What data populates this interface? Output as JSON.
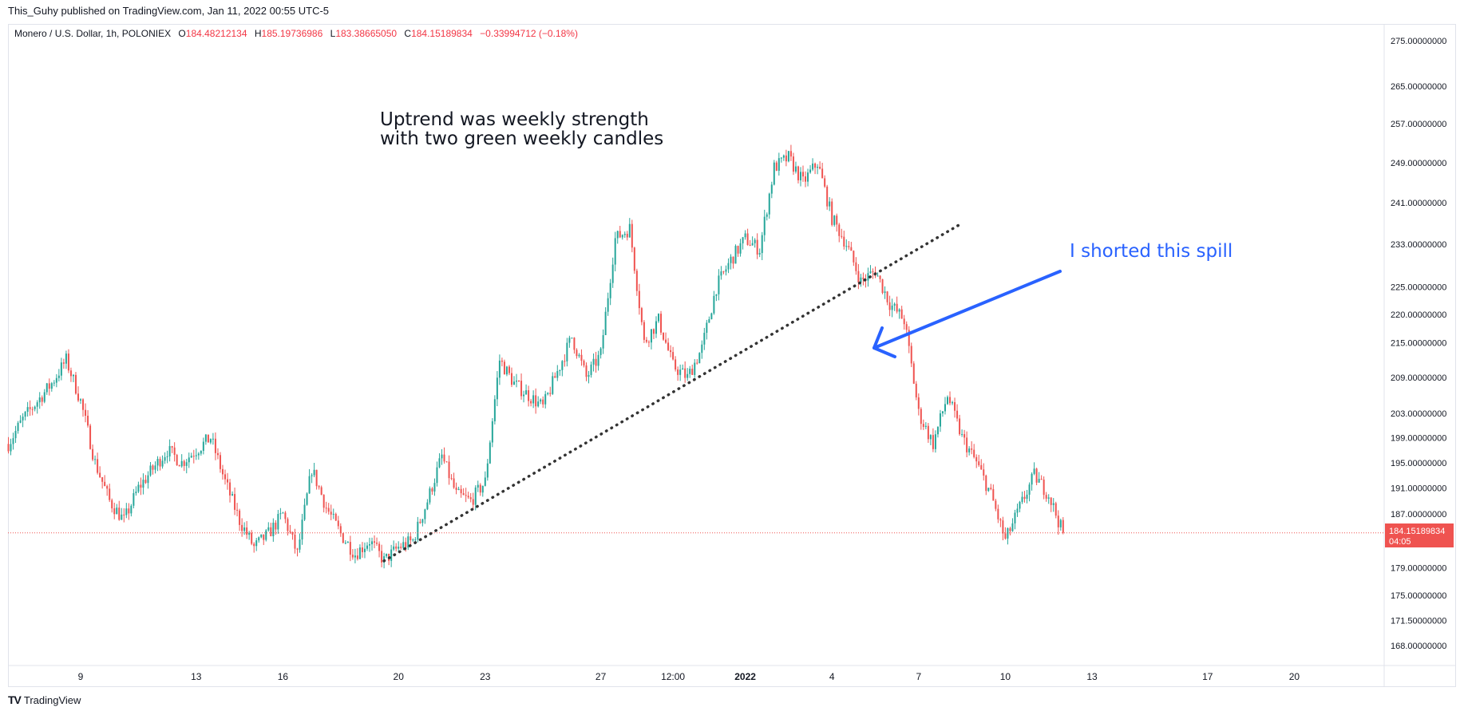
{
  "header": {
    "published": "This_Guhy published on TradingView.com, Jan 11, 2022 00:55 UTC-5"
  },
  "legend": {
    "symbol": "Monero / U.S. Dollar, 1h, POLONIEX",
    "open_label": "O",
    "open": "184.48212134",
    "high_label": "H",
    "high": "185.19736986",
    "low_label": "L",
    "low": "183.38665050",
    "close_label": "C",
    "close": "184.15189834",
    "change": "−0.33994712 (−0.18%)"
  },
  "footer": {
    "logo": "TV",
    "brand": "TradingView"
  },
  "colors": {
    "up": "#26a69a",
    "down": "#ef5350",
    "accent": "#2962ff",
    "price_badge": "#ef5350"
  },
  "chart_data": {
    "type": "candlestick",
    "title": "",
    "instrument": "Monero / U.S. Dollar",
    "interval": "1h",
    "exchange": "POLONIEX",
    "scale": "log",
    "price_ticks": [
      "275.00000000",
      "265.00000000",
      "257.00000000",
      "249.00000000",
      "241.00000000",
      "233.00000000",
      "225.00000000",
      "220.00000000",
      "215.00000000",
      "209.00000000",
      "203.00000000",
      "199.00000000",
      "195.00000000",
      "191.00000000",
      "187.00000000",
      "179.00000000",
      "175.00000000",
      "171.50000000",
      "168.00000000"
    ],
    "x_ticks": [
      {
        "label": "9",
        "date": "2021-12-09"
      },
      {
        "label": "13",
        "date": "2021-12-13"
      },
      {
        "label": "16",
        "date": "2021-12-16"
      },
      {
        "label": "20",
        "date": "2021-12-20"
      },
      {
        "label": "23",
        "date": "2021-12-23"
      },
      {
        "label": "27",
        "date": "2021-12-27"
      },
      {
        "label": "12:00",
        "date": "2021-12-29T12:00"
      },
      {
        "label": "2022",
        "date": "2022-01-01"
      },
      {
        "label": "4",
        "date": "2022-01-04"
      },
      {
        "label": "7",
        "date": "2022-01-07"
      },
      {
        "label": "10",
        "date": "2022-01-10"
      },
      {
        "label": "13",
        "date": "2022-01-13"
      },
      {
        "label": "17",
        "date": "2022-01-17"
      },
      {
        "label": "20",
        "date": "2022-01-20"
      }
    ],
    "price_path": [
      [
        "2021-12-06T12:00",
        198
      ],
      [
        "2021-12-07",
        202
      ],
      [
        "2021-12-07T12:00",
        205
      ],
      [
        "2021-12-08",
        208
      ],
      [
        "2021-12-08T12:00",
        212
      ],
      [
        "2021-12-09",
        205
      ],
      [
        "2021-12-09T12:00",
        195
      ],
      [
        "2021-12-10",
        189
      ],
      [
        "2021-12-10T12:00",
        186
      ],
      [
        "2021-12-11",
        191
      ],
      [
        "2021-12-11T12:00",
        194
      ],
      [
        "2021-12-12",
        197
      ],
      [
        "2021-12-12T12:00",
        195
      ],
      [
        "2021-12-13",
        197
      ],
      [
        "2021-12-13T12:00",
        199
      ],
      [
        "2021-12-14",
        192
      ],
      [
        "2021-12-14T12:00",
        186
      ],
      [
        "2021-12-15",
        182
      ],
      [
        "2021-12-15T12:00",
        184
      ],
      [
        "2021-12-16",
        187
      ],
      [
        "2021-12-16T12:00",
        181
      ],
      [
        "2021-12-17",
        194
      ],
      [
        "2021-12-17T12:00",
        188
      ],
      [
        "2021-12-18",
        184
      ],
      [
        "2021-12-18T12:00",
        181
      ],
      [
        "2021-12-19",
        183
      ],
      [
        "2021-12-19T12:00",
        180
      ],
      [
        "2021-12-20",
        182
      ],
      [
        "2021-12-20T12:00",
        183
      ],
      [
        "2021-12-21",
        189
      ],
      [
        "2021-12-21T12:00",
        196
      ],
      [
        "2021-12-22",
        190
      ],
      [
        "2021-12-22T12:00",
        189
      ],
      [
        "2021-12-23",
        192
      ],
      [
        "2021-12-23T12:00",
        212
      ],
      [
        "2021-12-24",
        208
      ],
      [
        "2021-12-24T12:00",
        206
      ],
      [
        "2021-12-25",
        204
      ],
      [
        "2021-12-25T12:00",
        210
      ],
      [
        "2021-12-26",
        216
      ],
      [
        "2021-12-26T12:00",
        209
      ],
      [
        "2021-12-27",
        213
      ],
      [
        "2021-12-27T12:00",
        234
      ],
      [
        "2021-12-28",
        236
      ],
      [
        "2021-12-28T12:00",
        215
      ],
      [
        "2021-12-29",
        219
      ],
      [
        "2021-12-29T12:00",
        211
      ],
      [
        "2021-12-30",
        209
      ],
      [
        "2021-12-30T12:00",
        214
      ],
      [
        "2021-12-31",
        225
      ],
      [
        "2021-12-31T12:00",
        230
      ],
      [
        "2022-01-01",
        234
      ],
      [
        "2022-01-01T12:00",
        232
      ],
      [
        "2022-01-02",
        248
      ],
      [
        "2022-01-02T12:00",
        250
      ],
      [
        "2022-01-03",
        245
      ],
      [
        "2022-01-03T12:00",
        249
      ],
      [
        "2022-01-04",
        238
      ],
      [
        "2022-01-04T12:00",
        233
      ],
      [
        "2022-01-05",
        226
      ],
      [
        "2022-01-05T12:00",
        228
      ],
      [
        "2022-01-06",
        222
      ],
      [
        "2022-01-06T12:00",
        219
      ],
      [
        "2022-01-07",
        203
      ],
      [
        "2022-01-07T12:00",
        198
      ],
      [
        "2022-01-08",
        206
      ],
      [
        "2022-01-08T12:00",
        199
      ],
      [
        "2022-01-09",
        195
      ],
      [
        "2022-01-09T12:00",
        190
      ],
      [
        "2022-01-10",
        183
      ],
      [
        "2022-01-10T12:00",
        188
      ],
      [
        "2022-01-11",
        193
      ],
      [
        "2022-01-11T12:00",
        190
      ],
      [
        "2022-01-12",
        184
      ]
    ],
    "current_price": "184.15189834",
    "countdown": "04:05",
    "trendline": {
      "from": [
        "2021-12-19T12:00",
        180
      ],
      "to": [
        "2022-01-08T12:00",
        237
      ],
      "style": "dotted"
    },
    "annotations": [
      {
        "text_lines": [
          "Uptrend was weekly strength",
          "with two green weekly candles"
        ]
      },
      {
        "text": "I shorted this spill",
        "arrow_to": [
          "2022-01-07",
          213
        ]
      }
    ]
  }
}
